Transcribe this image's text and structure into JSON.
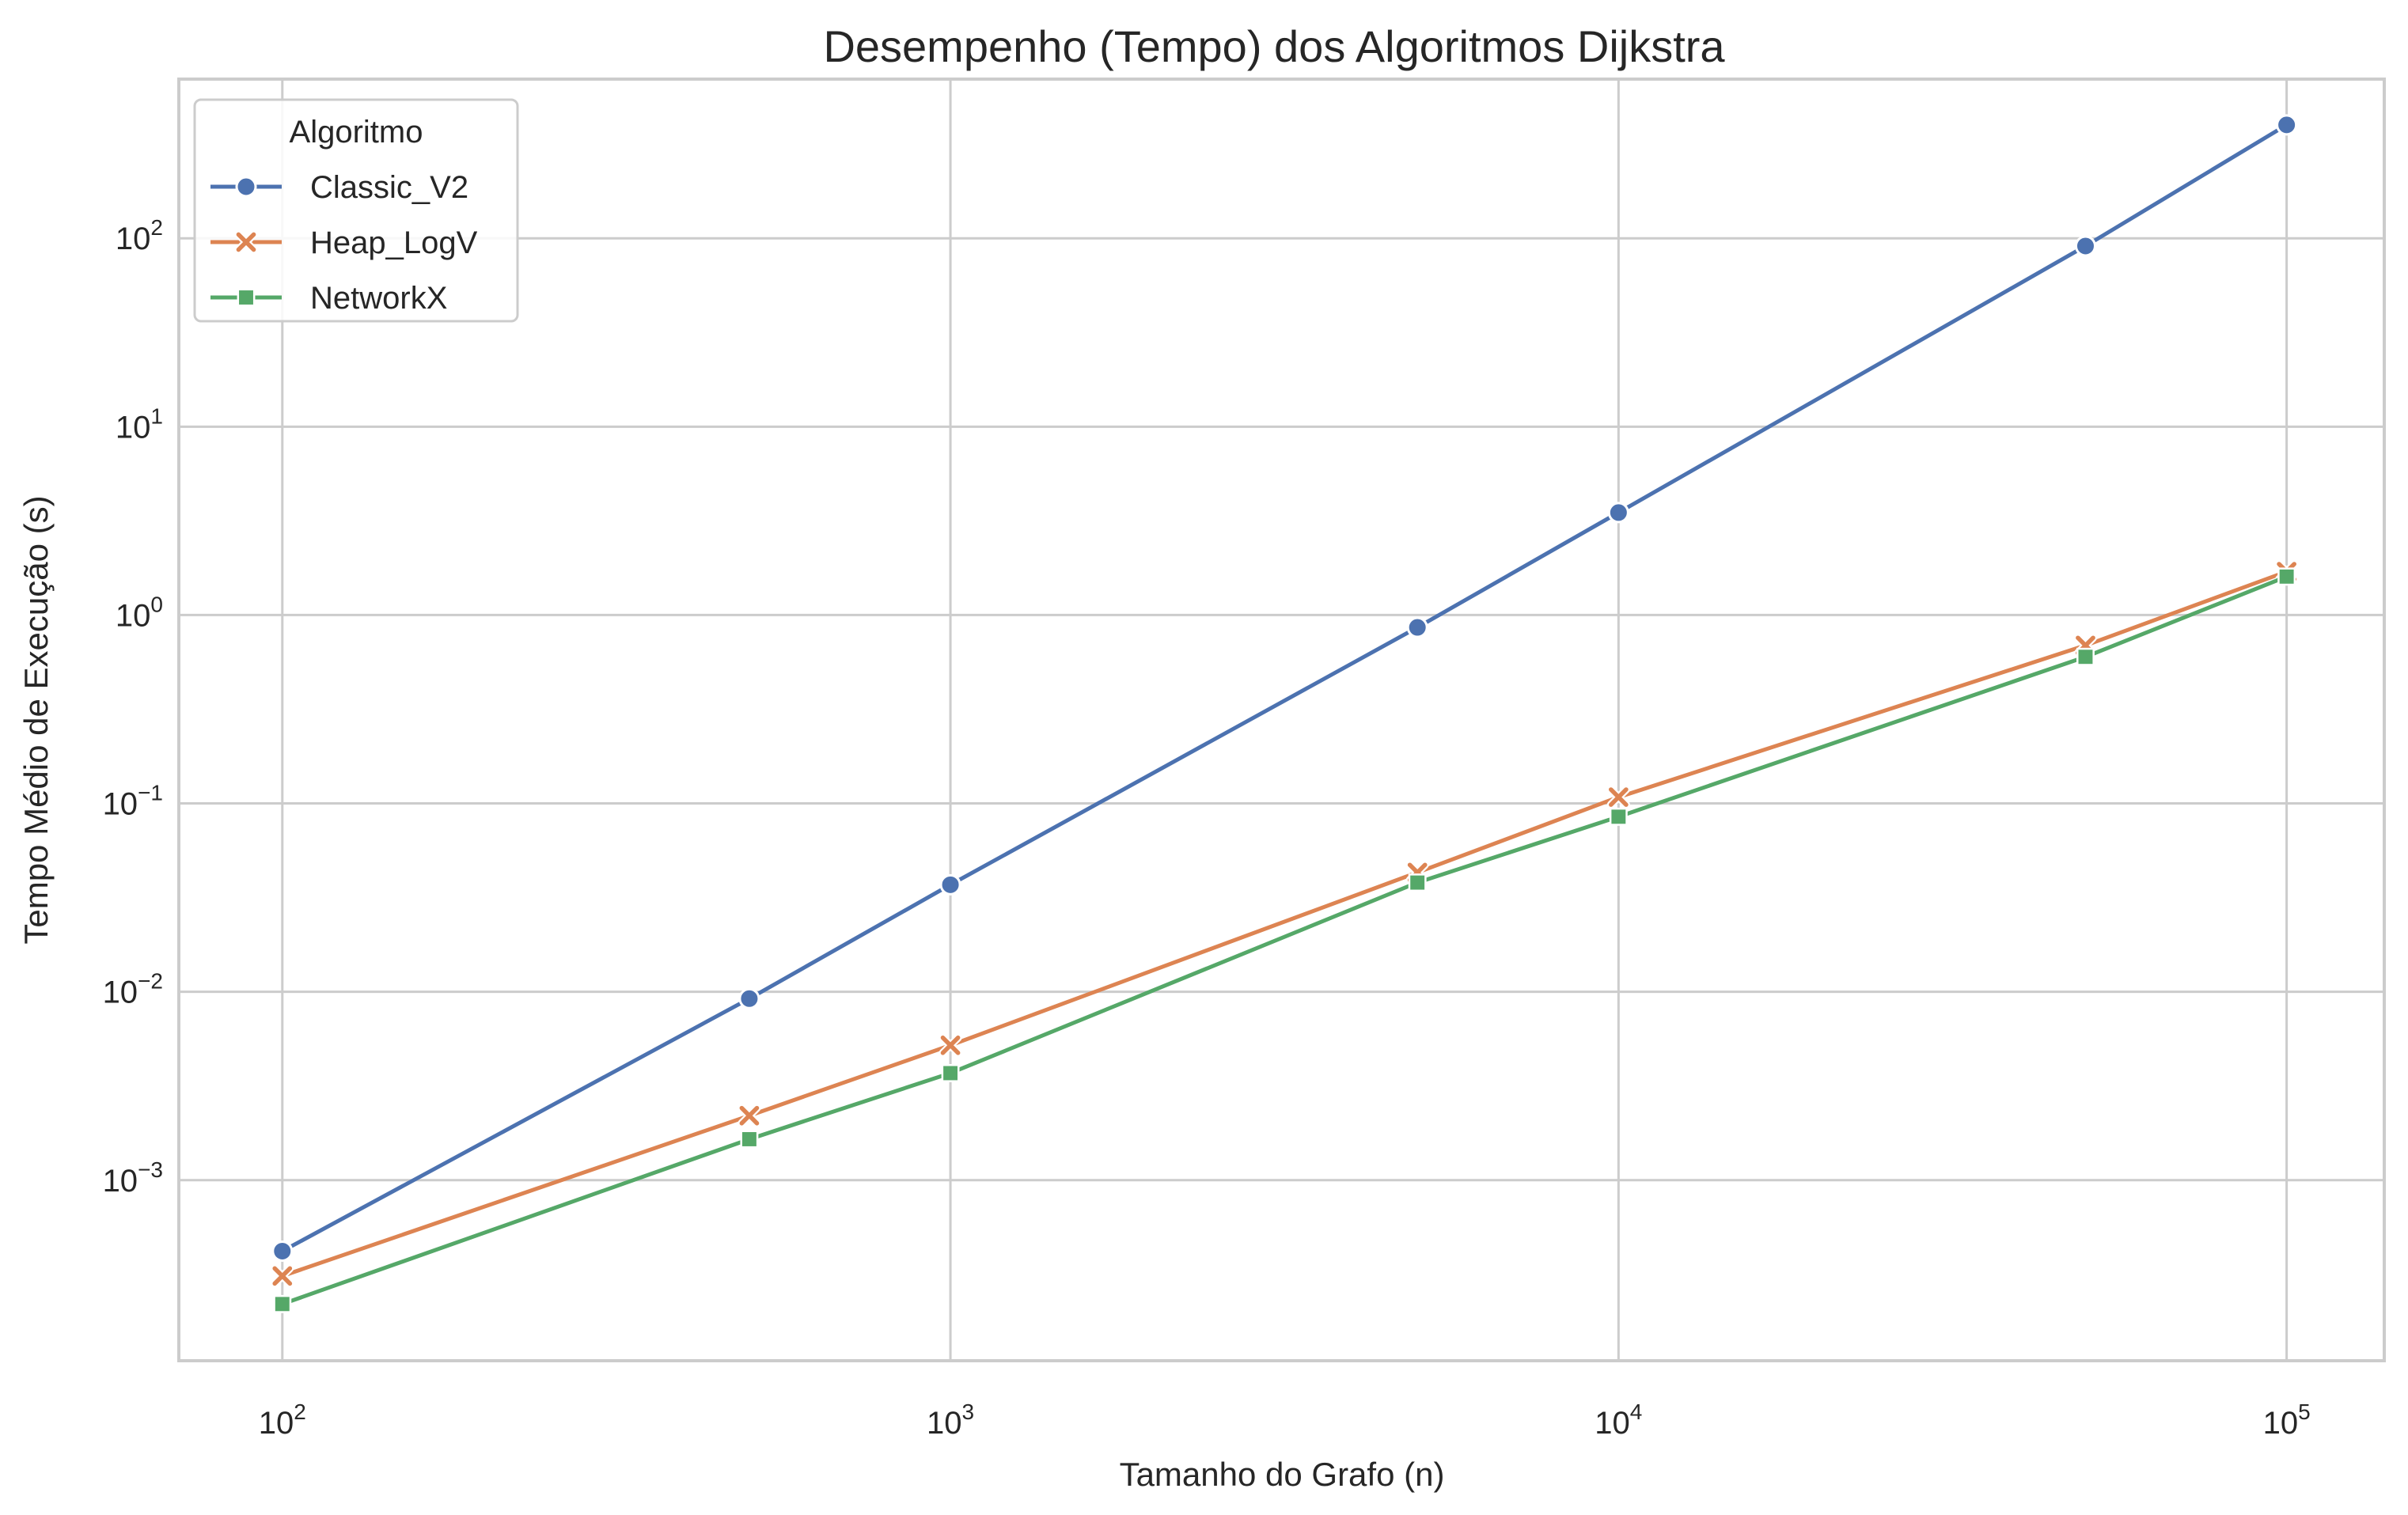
{
  "chart_data": {
    "type": "line",
    "title": "Desempenho (Tempo) dos Algoritmos Dijkstra",
    "xlabel": "Tamanho do Grafo (n)",
    "ylabel": "Tempo Médio de Execução (s)",
    "xscale": "log",
    "yscale": "log",
    "xlim": [
      70,
      140000
    ],
    "ylim": [
      0.00011,
      700
    ],
    "grid": true,
    "x_ticks": [
      {
        "base": "10",
        "exp": "2",
        "value": 100
      },
      {
        "base": "10",
        "exp": "3",
        "value": 1000
      },
      {
        "base": "10",
        "exp": "4",
        "value": 10000
      },
      {
        "base": "10",
        "exp": "5",
        "value": 100000
      }
    ],
    "y_ticks": [
      {
        "base": "10",
        "exp": "−3",
        "value": 0.001
      },
      {
        "base": "10",
        "exp": "−2",
        "value": 0.01
      },
      {
        "base": "10",
        "exp": "−1",
        "value": 0.1
      },
      {
        "base": "10",
        "exp": "0",
        "value": 1
      },
      {
        "base": "10",
        "exp": "1",
        "value": 10
      },
      {
        "base": "10",
        "exp": "2",
        "value": 100
      }
    ],
    "legend": {
      "title": "Algoritmo",
      "placement": "upper-left"
    },
    "x": [
      100,
      500,
      1000,
      5000,
      10000,
      50000,
      100000
    ],
    "series": [
      {
        "name": "Classic_V2",
        "color": "#4c72b0",
        "marker": "circle",
        "values": [
          0.00042,
          0.0092,
          0.037,
          0.86,
          3.5,
          91,
          400
        ]
      },
      {
        "name": "Heap_LogV",
        "color": "#dd8452",
        "marker": "x",
        "values": [
          0.00031,
          0.0022,
          0.0052,
          0.043,
          0.108,
          0.69,
          1.7
        ]
      },
      {
        "name": "NetworkX",
        "color": "#55a868",
        "marker": "square",
        "values": [
          0.00022,
          0.00165,
          0.0037,
          0.038,
          0.085,
          0.6,
          1.6
        ]
      }
    ]
  }
}
